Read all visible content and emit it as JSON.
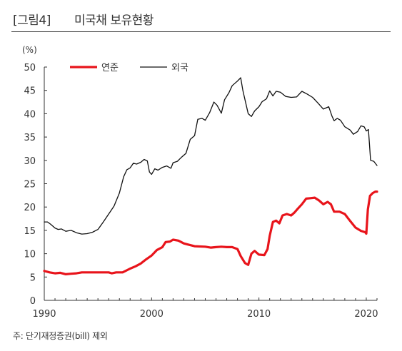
{
  "header": {
    "figure_label": "[그림4]",
    "title": "미국채 보유현황"
  },
  "footnote": "주: 단기재정증권(bill) 제외",
  "chart_data": {
    "type": "line",
    "title": "미국채 보유현황",
    "xlabel": "",
    "ylabel": "(%)",
    "xlim": [
      1990,
      2021
    ],
    "ylim": [
      0,
      50
    ],
    "yticks": [
      0,
      5,
      10,
      15,
      20,
      25,
      30,
      35,
      40,
      45,
      50
    ],
    "xticks": [
      1990,
      2000,
      2010,
      2020
    ],
    "grid": false,
    "legend_position": "top-left",
    "series": [
      {
        "name": "연준",
        "color": "#e8141b",
        "points": [
          [
            1990.0,
            6.3
          ],
          [
            1990.5,
            6.0
          ],
          [
            1991.0,
            5.8
          ],
          [
            1991.5,
            5.9
          ],
          [
            1992.0,
            5.6
          ],
          [
            1992.5,
            5.7
          ],
          [
            1993.0,
            5.8
          ],
          [
            1993.5,
            6.0
          ],
          [
            1994.0,
            6.0
          ],
          [
            1995.0,
            6.0
          ],
          [
            1996.0,
            6.0
          ],
          [
            1996.3,
            5.8
          ],
          [
            1996.7,
            6.0
          ],
          [
            1997.3,
            6.0
          ],
          [
            1998.0,
            6.8
          ],
          [
            1998.5,
            7.3
          ],
          [
            1999.0,
            7.9
          ],
          [
            1999.5,
            8.8
          ],
          [
            2000.0,
            9.6
          ],
          [
            2000.5,
            10.8
          ],
          [
            2001.0,
            11.4
          ],
          [
            2001.3,
            12.5
          ],
          [
            2001.7,
            12.6
          ],
          [
            2002.0,
            13.0
          ],
          [
            2002.5,
            12.8
          ],
          [
            2003.0,
            12.2
          ],
          [
            2003.5,
            11.9
          ],
          [
            2004.0,
            11.6
          ],
          [
            2005.0,
            11.5
          ],
          [
            2005.5,
            11.3
          ],
          [
            2006.0,
            11.4
          ],
          [
            2006.5,
            11.5
          ],
          [
            2007.0,
            11.4
          ],
          [
            2007.5,
            11.4
          ],
          [
            2008.0,
            11.0
          ],
          [
            2008.3,
            9.5
          ],
          [
            2008.7,
            8.0
          ],
          [
            2009.0,
            7.6
          ],
          [
            2009.3,
            10.0
          ],
          [
            2009.6,
            10.6
          ],
          [
            2010.0,
            9.8
          ],
          [
            2010.5,
            9.7
          ],
          [
            2010.8,
            11.0
          ],
          [
            2011.0,
            13.8
          ],
          [
            2011.3,
            16.8
          ],
          [
            2011.6,
            17.1
          ],
          [
            2011.9,
            16.5
          ],
          [
            2012.2,
            18.2
          ],
          [
            2012.6,
            18.5
          ],
          [
            2013.0,
            18.2
          ],
          [
            2013.3,
            18.8
          ],
          [
            2013.6,
            19.6
          ],
          [
            2014.0,
            20.6
          ],
          [
            2014.4,
            21.8
          ],
          [
            2014.8,
            21.9
          ],
          [
            2015.2,
            22.0
          ],
          [
            2015.6,
            21.4
          ],
          [
            2016.0,
            20.6
          ],
          [
            2016.4,
            21.1
          ],
          [
            2016.7,
            20.6
          ],
          [
            2017.0,
            19.0
          ],
          [
            2017.5,
            19.0
          ],
          [
            2018.0,
            18.5
          ],
          [
            2018.5,
            17.0
          ],
          [
            2019.0,
            15.6
          ],
          [
            2019.5,
            14.9
          ],
          [
            2019.9,
            14.6
          ],
          [
            2020.0,
            14.3
          ],
          [
            2020.15,
            19.5
          ],
          [
            2020.35,
            22.4
          ],
          [
            2020.6,
            23.0
          ],
          [
            2020.85,
            23.3
          ],
          [
            2021.0,
            23.3
          ]
        ]
      },
      {
        "name": "외국",
        "color": "#111111",
        "points": [
          [
            1990.0,
            16.8
          ],
          [
            1990.3,
            16.8
          ],
          [
            1990.6,
            16.3
          ],
          [
            1991.0,
            15.5
          ],
          [
            1991.3,
            15.2
          ],
          [
            1991.6,
            15.3
          ],
          [
            1992.0,
            14.8
          ],
          [
            1992.5,
            15.0
          ],
          [
            1993.0,
            14.5
          ],
          [
            1993.5,
            14.2
          ],
          [
            1994.0,
            14.3
          ],
          [
            1994.5,
            14.6
          ],
          [
            1995.0,
            15.2
          ],
          [
            1995.5,
            16.8
          ],
          [
            1996.0,
            18.5
          ],
          [
            1996.5,
            20.2
          ],
          [
            1997.0,
            23.0
          ],
          [
            1997.4,
            26.5
          ],
          [
            1997.7,
            28.0
          ],
          [
            1998.0,
            28.4
          ],
          [
            1998.3,
            29.4
          ],
          [
            1998.6,
            29.2
          ],
          [
            1999.0,
            29.6
          ],
          [
            1999.3,
            30.2
          ],
          [
            1999.6,
            29.9
          ],
          [
            1999.8,
            27.5
          ],
          [
            2000.0,
            27.0
          ],
          [
            2000.3,
            28.2
          ],
          [
            2000.6,
            27.9
          ],
          [
            2001.0,
            28.5
          ],
          [
            2001.4,
            28.8
          ],
          [
            2001.8,
            28.3
          ],
          [
            2002.0,
            29.5
          ],
          [
            2002.4,
            29.8
          ],
          [
            2002.8,
            30.7
          ],
          [
            2003.2,
            31.5
          ],
          [
            2003.6,
            34.5
          ],
          [
            2004.0,
            35.3
          ],
          [
            2004.3,
            38.8
          ],
          [
            2004.7,
            39.0
          ],
          [
            2005.0,
            38.6
          ],
          [
            2005.4,
            40.2
          ],
          [
            2005.8,
            42.5
          ],
          [
            2006.1,
            41.8
          ],
          [
            2006.5,
            40.1
          ],
          [
            2006.8,
            43.0
          ],
          [
            2007.2,
            44.5
          ],
          [
            2007.5,
            46.0
          ],
          [
            2007.8,
            46.6
          ],
          [
            2008.0,
            47.0
          ],
          [
            2008.3,
            47.7
          ],
          [
            2008.5,
            45.0
          ],
          [
            2008.8,
            42.0
          ],
          [
            2009.0,
            40.0
          ],
          [
            2009.3,
            39.4
          ],
          [
            2009.6,
            40.6
          ],
          [
            2010.0,
            41.5
          ],
          [
            2010.3,
            42.6
          ],
          [
            2010.7,
            43.2
          ],
          [
            2011.0,
            44.9
          ],
          [
            2011.3,
            43.8
          ],
          [
            2011.6,
            44.8
          ],
          [
            2012.0,
            44.6
          ],
          [
            2012.5,
            43.7
          ],
          [
            2013.0,
            43.5
          ],
          [
            2013.5,
            43.6
          ],
          [
            2014.0,
            44.8
          ],
          [
            2014.5,
            44.2
          ],
          [
            2015.0,
            43.5
          ],
          [
            2015.5,
            42.3
          ],
          [
            2016.0,
            41.0
          ],
          [
            2016.5,
            41.5
          ],
          [
            2016.8,
            39.5
          ],
          [
            2017.0,
            38.5
          ],
          [
            2017.3,
            39.0
          ],
          [
            2017.6,
            38.6
          ],
          [
            2018.0,
            37.2
          ],
          [
            2018.5,
            36.5
          ],
          [
            2018.8,
            35.6
          ],
          [
            2019.2,
            36.2
          ],
          [
            2019.5,
            37.4
          ],
          [
            2019.8,
            37.2
          ],
          [
            2020.0,
            36.3
          ],
          [
            2020.2,
            36.6
          ],
          [
            2020.4,
            30.0
          ],
          [
            2020.7,
            29.8
          ],
          [
            2021.0,
            28.9
          ]
        ]
      }
    ]
  }
}
